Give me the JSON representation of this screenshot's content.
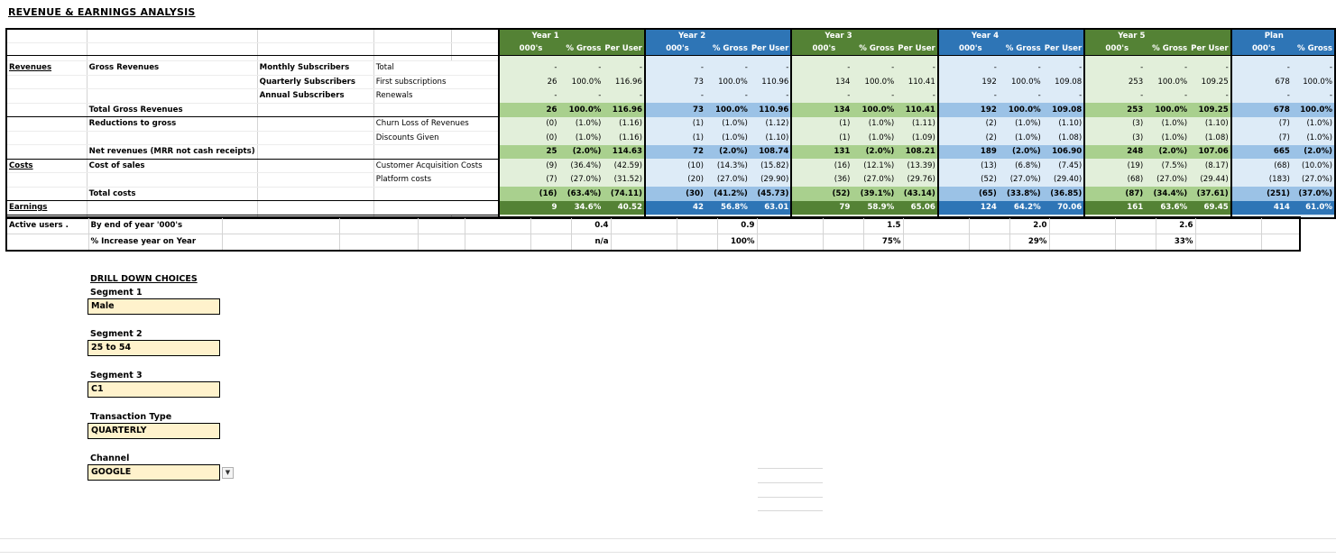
{
  "title": "REVENUE & EARNINGS ANALYSIS",
  "headers": {
    "years": [
      "Year 1",
      "Year 2",
      "Year 3",
      "Year 4",
      "Year 5",
      "Plan"
    ],
    "col_units": "000's",
    "col_gross": "% Gross",
    "col_peruser": "Per User"
  },
  "rows": [
    {
      "cat": "Revenues",
      "sub": "Gross Revenues",
      "group": "Monthly Subscribers",
      "detail": "Total",
      "type": "data",
      "v": [
        [
          "-",
          "-",
          "-"
        ],
        [
          "-",
          "-",
          "-"
        ],
        [
          "-",
          "-",
          "-"
        ],
        [
          "-",
          "-",
          "-"
        ],
        [
          "-",
          "-",
          "-"
        ],
        [
          "-",
          "-"
        ]
      ]
    },
    {
      "cat": "",
      "sub": "",
      "group": "Quarterly Subscribers",
      "detail": "First subscriptions",
      "type": "data",
      "v": [
        [
          "26",
          "100.0%",
          "116.96"
        ],
        [
          "73",
          "100.0%",
          "110.96"
        ],
        [
          "134",
          "100.0%",
          "110.41"
        ],
        [
          "192",
          "100.0%",
          "109.08"
        ],
        [
          "253",
          "100.0%",
          "109.25"
        ],
        [
          "678",
          "100.0%"
        ]
      ]
    },
    {
      "cat": "",
      "sub": "",
      "group": "Annual Subscribers",
      "detail": "Renewals",
      "type": "data",
      "v": [
        [
          "-",
          "-",
          "-"
        ],
        [
          "-",
          "-",
          "-"
        ],
        [
          "-",
          "-",
          "-"
        ],
        [
          "-",
          "-",
          "-"
        ],
        [
          "-",
          "-",
          "-"
        ],
        [
          "-",
          "-"
        ]
      ]
    },
    {
      "cat": "",
      "sub": "Total Gross Revenues",
      "group": "",
      "detail": "",
      "type": "sub",
      "v": [
        [
          "26",
          "100.0%",
          "116.96"
        ],
        [
          "73",
          "100.0%",
          "110.96"
        ],
        [
          "134",
          "100.0%",
          "110.41"
        ],
        [
          "192",
          "100.0%",
          "109.08"
        ],
        [
          "253",
          "100.0%",
          "109.25"
        ],
        [
          "678",
          "100.0%"
        ]
      ]
    },
    {
      "cat": "",
      "sub": "Reductions to gross",
      "group": "",
      "detail": "Churn Loss of Revenues",
      "type": "data",
      "v": [
        [
          "(0)",
          "(1.0%)",
          "(1.16)"
        ],
        [
          "(1)",
          "(1.0%)",
          "(1.12)"
        ],
        [
          "(1)",
          "(1.0%)",
          "(1.11)"
        ],
        [
          "(2)",
          "(1.0%)",
          "(1.10)"
        ],
        [
          "(3)",
          "(1.0%)",
          "(1.10)"
        ],
        [
          "(7)",
          "(1.0%)"
        ]
      ]
    },
    {
      "cat": "",
      "sub": "",
      "group": "",
      "detail": "Discounts Given",
      "type": "data",
      "v": [
        [
          "(0)",
          "(1.0%)",
          "(1.16)"
        ],
        [
          "(1)",
          "(1.0%)",
          "(1.10)"
        ],
        [
          "(1)",
          "(1.0%)",
          "(1.09)"
        ],
        [
          "(2)",
          "(1.0%)",
          "(1.08)"
        ],
        [
          "(3)",
          "(1.0%)",
          "(1.08)"
        ],
        [
          "(7)",
          "(1.0%)"
        ]
      ]
    },
    {
      "cat": "",
      "sub": "Net revenues (MRR not cash receipts)",
      "group": "",
      "detail": "",
      "type": "sub",
      "v": [
        [
          "25",
          "(2.0%)",
          "114.63"
        ],
        [
          "72",
          "(2.0%)",
          "108.74"
        ],
        [
          "131",
          "(2.0%)",
          "108.21"
        ],
        [
          "189",
          "(2.0%)",
          "106.90"
        ],
        [
          "248",
          "(2.0%)",
          "107.06"
        ],
        [
          "665",
          "(2.0%)"
        ]
      ]
    },
    {
      "cat": "Costs",
      "sub": "Cost of sales",
      "group": "",
      "detail": "Customer Acquisition Costs",
      "type": "data",
      "v": [
        [
          "(9)",
          "(36.4%)",
          "(42.59)"
        ],
        [
          "(10)",
          "(14.3%)",
          "(15.82)"
        ],
        [
          "(16)",
          "(12.1%)",
          "(13.39)"
        ],
        [
          "(13)",
          "(6.8%)",
          "(7.45)"
        ],
        [
          "(19)",
          "(7.5%)",
          "(8.17)"
        ],
        [
          "(68)",
          "(10.0%)"
        ]
      ]
    },
    {
      "cat": "",
      "sub": "",
      "group": "",
      "detail": "Platform costs",
      "type": "data",
      "v": [
        [
          "(7)",
          "(27.0%)",
          "(31.52)"
        ],
        [
          "(20)",
          "(27.0%)",
          "(29.90)"
        ],
        [
          "(36)",
          "(27.0%)",
          "(29.76)"
        ],
        [
          "(52)",
          "(27.0%)",
          "(29.40)"
        ],
        [
          "(68)",
          "(27.0%)",
          "(29.44)"
        ],
        [
          "(183)",
          "(27.0%)"
        ]
      ]
    },
    {
      "cat": "",
      "sub": "Total costs",
      "group": "",
      "detail": "",
      "type": "sub",
      "v": [
        [
          "(16)",
          "(63.4%)",
          "(74.11)"
        ],
        [
          "(30)",
          "(41.2%)",
          "(45.73)"
        ],
        [
          "(52)",
          "(39.1%)",
          "(43.14)"
        ],
        [
          "(65)",
          "(33.8%)",
          "(36.85)"
        ],
        [
          "(87)",
          "(34.4%)",
          "(37.61)"
        ],
        [
          "(251)",
          "(37.0%)"
        ]
      ]
    },
    {
      "cat": "Earnings",
      "sub": "",
      "group": "",
      "detail": "",
      "type": "earn",
      "v": [
        [
          "9",
          "34.6%",
          "40.52"
        ],
        [
          "42",
          "56.8%",
          "63.01"
        ],
        [
          "79",
          "58.9%",
          "65.06"
        ],
        [
          "124",
          "64.2%",
          "70.06"
        ],
        [
          "161",
          "63.6%",
          "69.45"
        ],
        [
          "414",
          "61.0%"
        ]
      ]
    }
  ],
  "users": {
    "label": "Active users .",
    "row1_label": "By end of year '000's",
    "row1_values": [
      "0.4",
      "0.9",
      "1.5",
      "2.0",
      "2.6"
    ],
    "row2_label": "% Increase year on Year",
    "row2_values": [
      "n/a",
      "100%",
      "75%",
      "29%",
      "33%"
    ]
  },
  "drill": {
    "title": "DRILL DOWN CHOICES",
    "segments": [
      {
        "label": "Segment 1",
        "value": "Male"
      },
      {
        "label": "Segment 2",
        "value": "25 to 54"
      },
      {
        "label": "Segment 3",
        "value": "C1"
      },
      {
        "label": "Transaction Type",
        "value": "QUARTERLY"
      },
      {
        "label": "Channel",
        "value": "GOOGLE"
      }
    ],
    "dropdown_icon": "dropdown-arrow-icon"
  },
  "colors": {
    "green_header": "#548235",
    "blue_header": "#2e75b6",
    "green_fill": "#e2efda",
    "blue_fill": "#ddebf7",
    "green_sub": "#a9d08e",
    "blue_sub": "#9bc2e6",
    "input_fill": "#fff2cc"
  }
}
